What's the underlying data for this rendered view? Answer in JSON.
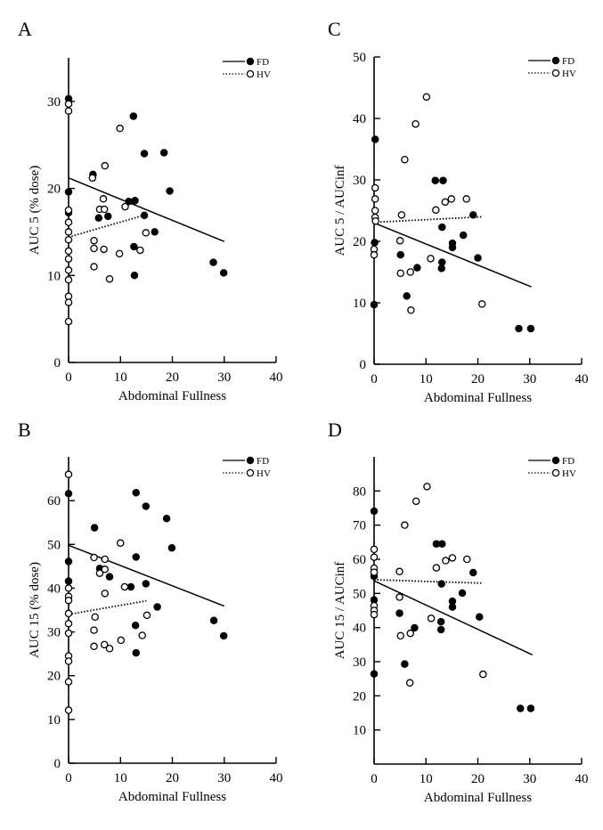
{
  "chart_data": [
    {
      "panel": "A",
      "type": "scatter",
      "xlabel": "Abdominal Fullness",
      "ylabel": "AUC 5 (% dose)",
      "xlim": [
        0,
        40
      ],
      "ylim": [
        0,
        35
      ],
      "xticks": [
        0,
        10,
        20,
        30,
        40
      ],
      "yticks": [
        0,
        10,
        20,
        30
      ],
      "grid": false,
      "legend_placement": "top-right",
      "series": [
        {
          "name": "FD",
          "marker": "filled-circle",
          "line": "solid",
          "points": [
            [
              0,
              30.3
            ],
            [
              12.5,
              28.3
            ],
            [
              14.6,
              24.0
            ],
            [
              18.4,
              24.1
            ],
            [
              4.7,
              21.6
            ],
            [
              0,
              19.6
            ],
            [
              19.5,
              19.7
            ],
            [
              11.6,
              18.5
            ],
            [
              12.8,
              18.6
            ],
            [
              0,
              17.2
            ],
            [
              5.8,
              16.6
            ],
            [
              7.6,
              16.8
            ],
            [
              14.6,
              16.9
            ],
            [
              16.6,
              15.0
            ],
            [
              12.6,
              13.3
            ],
            [
              27.9,
              11.5
            ],
            [
              29.9,
              10.3
            ],
            [
              12.7,
              10.0
            ]
          ],
          "fit": [
            [
              0,
              21.2
            ],
            [
              30,
              13.9
            ]
          ]
        },
        {
          "name": "HV",
          "marker": "open-circle",
          "line": "dotted",
          "points": [
            [
              0,
              29.7
            ],
            [
              0,
              28.9
            ],
            [
              9.9,
              26.9
            ],
            [
              7.0,
              22.6
            ],
            [
              4.6,
              21.2
            ],
            [
              6.7,
              18.8
            ],
            [
              6.0,
              17.6
            ],
            [
              6.9,
              17.6
            ],
            [
              10.9,
              17.9
            ],
            [
              0,
              17.5
            ],
            [
              0,
              16.1
            ],
            [
              0,
              15.0
            ],
            [
              0,
              14.1
            ],
            [
              0,
              12.8
            ],
            [
              0,
              11.9
            ],
            [
              0,
              10.6
            ],
            [
              0,
              9.5
            ],
            [
              0,
              7.6
            ],
            [
              0,
              6.9
            ],
            [
              0,
              4.7
            ],
            [
              14.9,
              14.9
            ],
            [
              4.9,
              14.0
            ],
            [
              4.9,
              13.1
            ],
            [
              6.8,
              13.0
            ],
            [
              13.8,
              12.9
            ],
            [
              9.8,
              12.5
            ],
            [
              4.9,
              11.0
            ],
            [
              7.9,
              9.6
            ]
          ],
          "fit": [
            [
              0,
              14.4
            ],
            [
              15,
              17.0
            ]
          ]
        }
      ]
    },
    {
      "panel": "C",
      "type": "scatter",
      "xlabel": "Abdominal Fullness",
      "ylabel": "AUC 5 / AUCinf",
      "xlim": [
        0,
        40
      ],
      "ylim": [
        0,
        50
      ],
      "xticks": [
        0,
        10,
        20,
        30,
        40
      ],
      "yticks": [
        0,
        10,
        20,
        30,
        40,
        50
      ],
      "grid": false,
      "legend_placement": "top-right",
      "series": [
        {
          "name": "FD",
          "marker": "filled-circle",
          "line": "solid",
          "points": [
            [
              0.2,
              36.6
            ],
            [
              11.8,
              29.9
            ],
            [
              13.3,
              29.9
            ],
            [
              19.1,
              24.3
            ],
            [
              13.1,
              22.3
            ],
            [
              17.2,
              21.0
            ],
            [
              0.1,
              19.8
            ],
            [
              15.1,
              19.7
            ],
            [
              15.1,
              19.0
            ],
            [
              5.1,
              17.8
            ],
            [
              20.0,
              17.3
            ],
            [
              13.1,
              16.6
            ],
            [
              13.0,
              15.6
            ],
            [
              8.3,
              15.7
            ],
            [
              6.3,
              11.1
            ],
            [
              0,
              9.7
            ],
            [
              27.9,
              5.8
            ],
            [
              30.2,
              5.8
            ]
          ],
          "fit": [
            [
              0,
              23.0
            ],
            [
              30.3,
              12.6
            ]
          ]
        },
        {
          "name": "HV",
          "marker": "open-circle",
          "line": "dotted",
          "points": [
            [
              10.1,
              43.5
            ],
            [
              8.0,
              39.1
            ],
            [
              5.9,
              33.3
            ],
            [
              0.2,
              28.7
            ],
            [
              0.2,
              26.9
            ],
            [
              0.2,
              25.0
            ],
            [
              0.2,
              23.9
            ],
            [
              0.3,
              23.3
            ],
            [
              5.3,
              24.3
            ],
            [
              11.9,
              25.1
            ],
            [
              13.7,
              26.4
            ],
            [
              14.9,
              26.9
            ],
            [
              17.8,
              26.9
            ],
            [
              5.0,
              20.1
            ],
            [
              0,
              18.7
            ],
            [
              0,
              17.8
            ],
            [
              10.9,
              17.2
            ],
            [
              5.1,
              14.8
            ],
            [
              7.0,
              15.0
            ],
            [
              7.1,
              8.8
            ],
            [
              20.8,
              9.8
            ]
          ],
          "fit": [
            [
              0,
              23.1
            ],
            [
              21,
              24.0
            ]
          ]
        }
      ]
    },
    {
      "panel": "B",
      "type": "scatter",
      "xlabel": "Abdominal Fullness",
      "ylabel": "AUC 15 (% dose)",
      "xlim": [
        0,
        40
      ],
      "ylim": [
        0,
        70
      ],
      "xticks": [
        0,
        10,
        20,
        30,
        40
      ],
      "yticks": [
        0,
        10,
        20,
        30,
        40,
        50,
        60
      ],
      "grid": false,
      "legend_placement": "top-right",
      "series": [
        {
          "name": "FD",
          "marker": "filled-circle",
          "line": "solid",
          "points": [
            [
              0,
              61.6
            ],
            [
              13.0,
              61.8
            ],
            [
              14.9,
              58.7
            ],
            [
              18.9,
              55.9
            ],
            [
              5.0,
              53.8
            ],
            [
              19.9,
              49.2
            ],
            [
              0,
              46.1
            ],
            [
              13.0,
              47.1
            ],
            [
              6.0,
              44.5
            ],
            [
              7.9,
              42.6
            ],
            [
              0,
              41.6
            ],
            [
              12.0,
              40.3
            ],
            [
              14.9,
              41.0
            ],
            [
              17.1,
              35.7
            ],
            [
              28.0,
              32.6
            ],
            [
              12.9,
              31.5
            ],
            [
              29.9,
              29.1
            ],
            [
              13.0,
              25.2
            ]
          ],
          "fit": [
            [
              0,
              49.8
            ],
            [
              30,
              35.9
            ]
          ]
        },
        {
          "name": "HV",
          "marker": "open-circle",
          "line": "dotted",
          "points": [
            [
              0,
              66.0
            ],
            [
              10.0,
              50.3
            ],
            [
              4.9,
              47.0
            ],
            [
              7.0,
              46.6
            ],
            [
              7.0,
              44.3
            ],
            [
              6.0,
              43.4
            ],
            [
              10.8,
              40.3
            ],
            [
              0,
              40.0
            ],
            [
              0,
              38.1
            ],
            [
              0,
              37.2
            ],
            [
              7.0,
              38.8
            ],
            [
              0,
              34.2
            ],
            [
              15.1,
              33.8
            ],
            [
              5.1,
              33.4
            ],
            [
              0,
              31.9
            ],
            [
              0,
              29.7
            ],
            [
              4.9,
              30.4
            ],
            [
              14.2,
              29.2
            ],
            [
              10.1,
              28.1
            ],
            [
              6.9,
              27.1
            ],
            [
              4.9,
              26.7
            ],
            [
              7.9,
              26.2
            ],
            [
              0,
              24.5
            ],
            [
              0,
              23.3
            ],
            [
              0,
              18.6
            ],
            [
              0,
              12.1
            ]
          ],
          "fit": [
            [
              0,
              34.0
            ],
            [
              15,
              37.1
            ]
          ]
        }
      ]
    },
    {
      "panel": "D",
      "type": "scatter",
      "xlabel": "Abdominal Fullness",
      "ylabel": "AUC 15 / AUCinf",
      "xlim": [
        0,
        40
      ],
      "ylim": [
        0,
        90
      ],
      "xticks": [
        0,
        10,
        20,
        30,
        40
      ],
      "yticks": [
        10,
        20,
        30,
        40,
        50,
        60,
        70,
        80
      ],
      "grid": false,
      "legend_placement": "top-right",
      "series": [
        {
          "name": "FD",
          "marker": "filled-circle",
          "line": "solid",
          "points": [
            [
              0,
              74.1
            ],
            [
              12.0,
              64.5
            ],
            [
              13.1,
              64.5
            ],
            [
              19.1,
              56.1
            ],
            [
              0,
              55.0
            ],
            [
              13.0,
              52.8
            ],
            [
              17.0,
              50.1
            ],
            [
              0,
              48.1
            ],
            [
              15.1,
              47.7
            ],
            [
              15.1,
              46.0
            ],
            [
              4.9,
              44.2
            ],
            [
              20.3,
              43.1
            ],
            [
              12.9,
              41.7
            ],
            [
              12.9,
              39.4
            ],
            [
              7.8,
              39.9
            ],
            [
              5.9,
              29.3
            ],
            [
              0,
              26.4
            ],
            [
              28.2,
              16.3
            ],
            [
              30.2,
              16.3
            ]
          ],
          "fit": [
            [
              0,
              53.7
            ],
            [
              30.5,
              32.0
            ]
          ]
        },
        {
          "name": "HV",
          "marker": "open-circle",
          "line": "dotted",
          "points": [
            [
              10.2,
              81.3
            ],
            [
              8.1,
              77.0
            ],
            [
              5.9,
              70.0
            ],
            [
              0,
              62.9
            ],
            [
              0,
              60.6
            ],
            [
              0,
              57.4
            ],
            [
              0,
              56.2
            ],
            [
              4.9,
              56.4
            ],
            [
              12.0,
              57.5
            ],
            [
              13.8,
              59.6
            ],
            [
              15.1,
              60.4
            ],
            [
              17.9,
              60.0
            ],
            [
              4.9,
              48.9
            ],
            [
              0,
              46.4
            ],
            [
              0,
              45.0
            ],
            [
              0,
              43.8
            ],
            [
              11.0,
              42.7
            ],
            [
              5.1,
              37.6
            ],
            [
              7.0,
              38.3
            ],
            [
              6.9,
              23.8
            ],
            [
              21.0,
              26.3
            ]
          ],
          "fit": [
            [
              0,
              54.0
            ],
            [
              21,
              53.0
            ]
          ]
        }
      ]
    }
  ]
}
